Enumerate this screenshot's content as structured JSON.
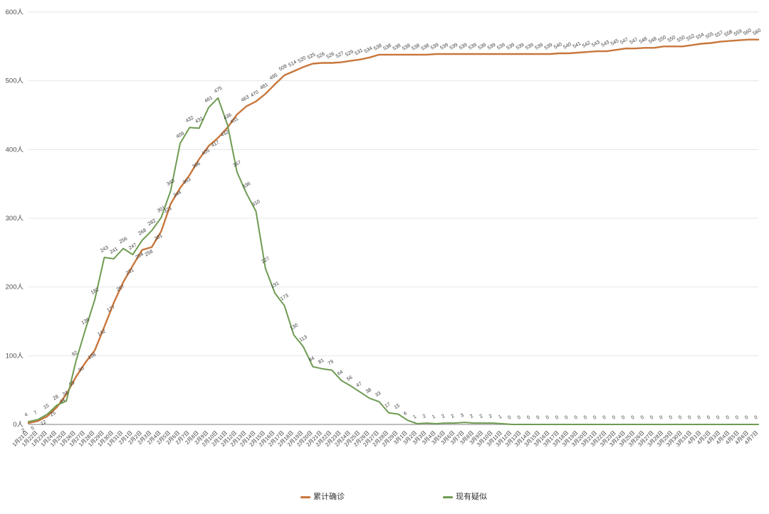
{
  "page": {
    "background": "#ffffff"
  },
  "chart_data": {
    "type": "line",
    "title": "",
    "xlabel": "",
    "ylabel": "",
    "y_axis": {
      "min": 0,
      "max": 600,
      "step": 100,
      "unit": "人",
      "ticks": [
        "0人",
        "100人",
        "200人",
        "300人",
        "400人",
        "500人",
        "600人"
      ]
    },
    "grid": true,
    "legend_position": "bottom",
    "x": [
      "1月21日",
      "1月22日",
      "1月23日",
      "1月24日",
      "1月25日",
      "1月26日",
      "1月27日",
      "1月28日",
      "1月29日",
      "1月30日",
      "1月31日",
      "2月1日",
      "2月2日",
      "2月3日",
      "2月4日",
      "2月5日",
      "2月6日",
      "2月7日",
      "2月8日",
      "2月9日",
      "2月10日",
      "2月11日",
      "2月12日",
      "2月13日",
      "2月14日",
      "2月15日",
      "2月16日",
      "2月17日",
      "2月18日",
      "2月19日",
      "2月20日",
      "2月21日",
      "2月22日",
      "2月23日",
      "2月24日",
      "2月25日",
      "2月26日",
      "2月27日",
      "2月28日",
      "2月29日",
      "3月1日",
      "3月2日",
      "3月3日",
      "3月4日",
      "3月5日",
      "3月6日",
      "3月7日",
      "3月8日",
      "3月9日",
      "3月10日",
      "3月11日",
      "3月12日",
      "3月13日",
      "3月14日",
      "3月15日",
      "3月16日",
      "3月17日",
      "3月18日",
      "3月19日",
      "3月20日",
      "3月21日",
      "3月22日",
      "3月23日",
      "3月24日",
      "3月25日",
      "3月26日",
      "3月27日",
      "3月28日",
      "3月29日",
      "3月30日",
      "3月31日",
      "4月1日",
      "4月2日",
      "4月3日",
      "4月4日",
      "4月5日",
      "4月6日",
      "4月7日"
    ],
    "series": [
      {
        "name": "累计确诊",
        "color": "#c8763c",
        "values": [
          2,
          5,
          12,
          25,
          44,
          69,
          90,
          108,
          142,
          177,
          207,
          231,
          254,
          258,
          281,
          321,
          344,
          363,
          386,
          405,
          417,
          432,
          451,
          463,
          470,
          481,
          495,
          508,
          514,
          520,
          525,
          526,
          526,
          527,
          529,
          531,
          534,
          538,
          538,
          538,
          538,
          538,
          538,
          539,
          539,
          539,
          539,
          539,
          539,
          539,
          539,
          539,
          539,
          539,
          539,
          539,
          540,
          540,
          541,
          542,
          543,
          543,
          545,
          547,
          547,
          548,
          548,
          550,
          550,
          550,
          552,
          554,
          555,
          557,
          558,
          559,
          560,
          560
        ]
      },
      {
        "name": "现有疑似",
        "color": "#6f9b52",
        "values": [
          4,
          7,
          15,
          28,
          34,
          92,
          138,
          182,
          243,
          241,
          256,
          247,
          268,
          282,
          301,
          340,
          409,
          432,
          431,
          461,
          475,
          436,
          367,
          336,
          310,
          227,
          191,
          173,
          130,
          113,
          84,
          81,
          79,
          64,
          56,
          47,
          38,
          33,
          17,
          15,
          6,
          1,
          2,
          1,
          2,
          2,
          3,
          2,
          2,
          2,
          1,
          0,
          0,
          0,
          0,
          0,
          0,
          0,
          0,
          0,
          0,
          0,
          0,
          0,
          0,
          0,
          0,
          0,
          0,
          0,
          0,
          0,
          0,
          0,
          0,
          0,
          0,
          0
        ]
      }
    ]
  }
}
